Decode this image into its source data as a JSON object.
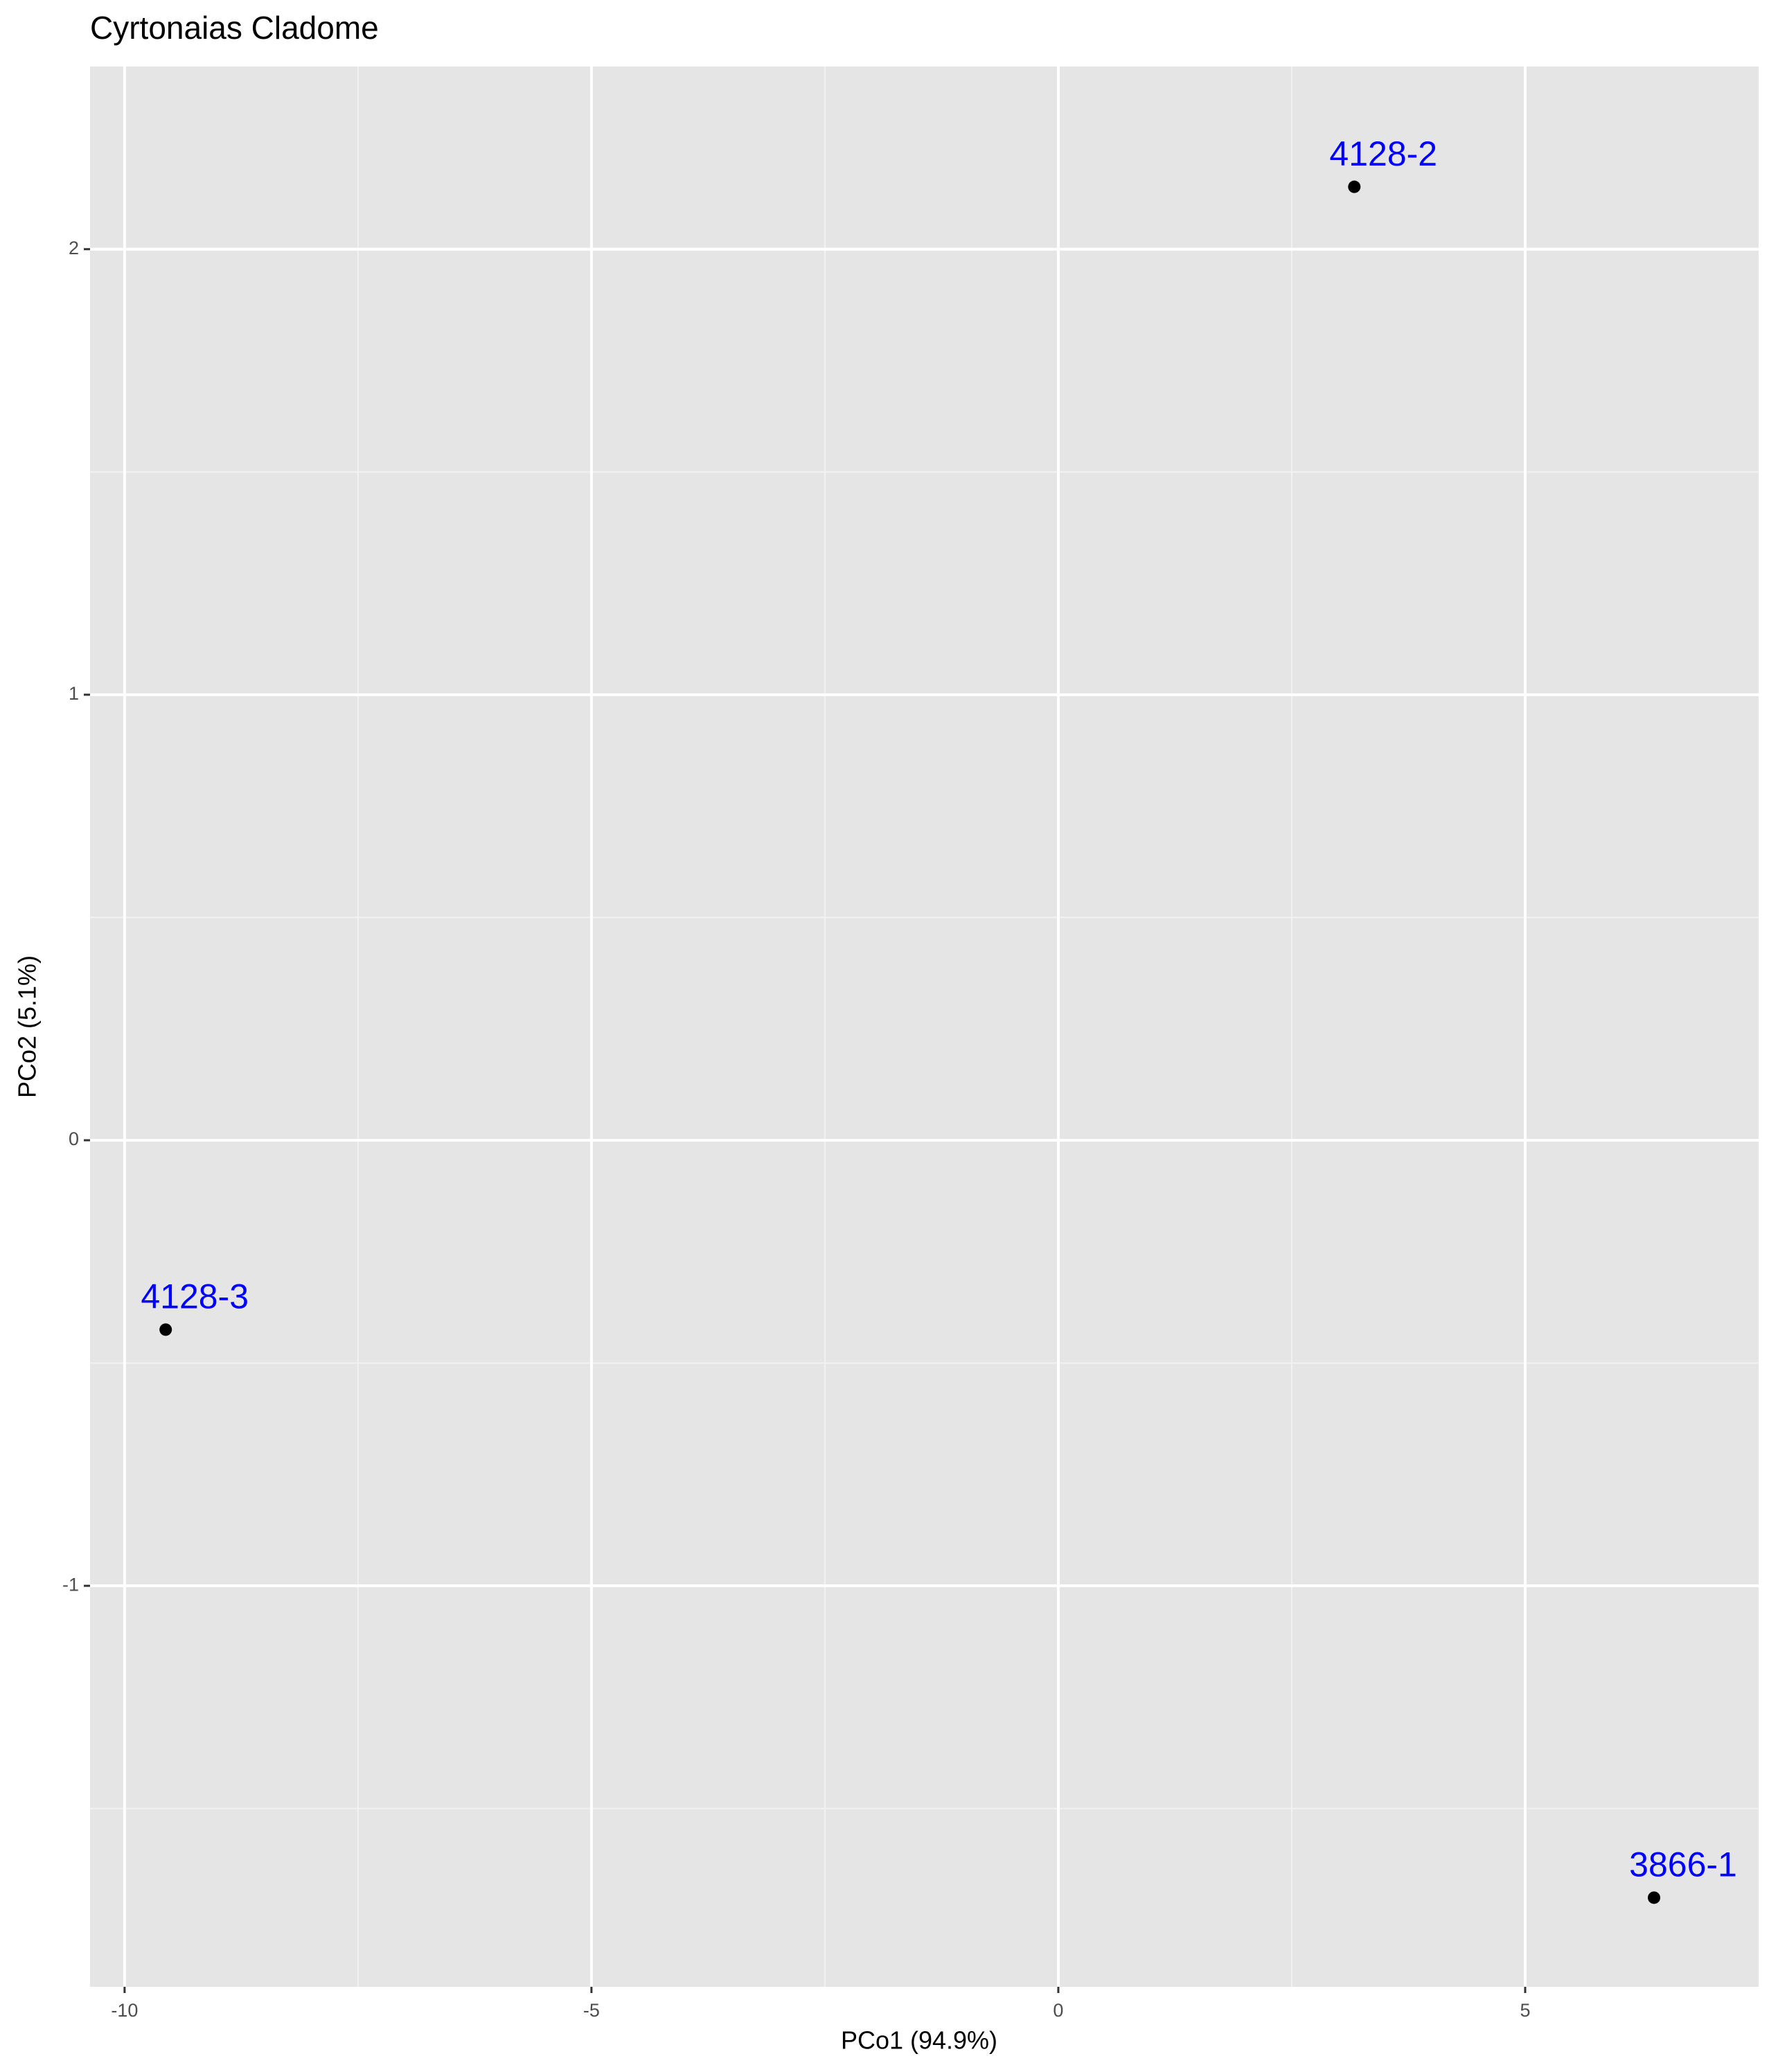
{
  "chart_data": {
    "type": "scatter",
    "title": "Cyrtonaias Cladome",
    "x_label": "PCo1 (94.9%)",
    "y_label": "PCo2 (5.1%)",
    "x": [
      3.17,
      -9.56,
      6.38
    ],
    "values": [
      2.14,
      -0.425,
      -1.7
    ],
    "labels": [
      "4128-2",
      "4128-3",
      "3866-1"
    ],
    "color": "#000000",
    "label_color": "#0000ff",
    "xlim": [
      -10.37,
      7.5
    ],
    "ylim": [
      -1.9,
      2.41
    ],
    "xticks": [
      -10,
      -5,
      0,
      5
    ],
    "yticks": [
      -1,
      0,
      1,
      2
    ],
    "x_minor_grid": [
      -7.5,
      -2.5,
      2.5
    ],
    "y_minor_grid": [
      -1.5,
      -0.5,
      0.5,
      1.5
    ],
    "grid": true
  }
}
